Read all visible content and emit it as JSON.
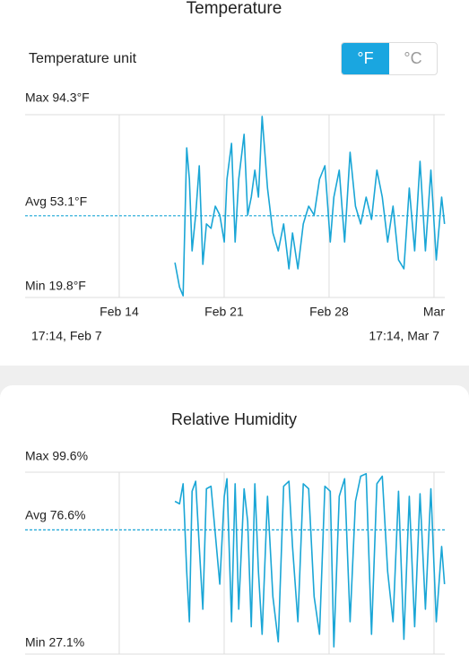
{
  "header": {
    "title": "Temperature"
  },
  "unit_setting": {
    "label": "Temperature unit",
    "options": [
      "°F",
      "°C"
    ],
    "selected": 0
  },
  "chart_data": [
    {
      "type": "line",
      "x": [
        17.72,
        18.02,
        18.26,
        18.5,
        18.68,
        18.86,
        19.1,
        19.34,
        19.58,
        19.82,
        20.12,
        20.41,
        20.71,
        21.01,
        21.19,
        21.49,
        21.73,
        21.97,
        22.33,
        22.57,
        22.81,
        23.05,
        23.29,
        23.53,
        23.89,
        24.25,
        24.61,
        24.97,
        25.32,
        25.56,
        25.92,
        26.28,
        26.64,
        27,
        27.36,
        27.72,
        28.08,
        28.32,
        28.68,
        29.04,
        29.4,
        29.76,
        30.11,
        30.47,
        30.83,
        31.19,
        31.55,
        31.91,
        32.27,
        32.63,
        32.99,
        33.35,
        33.71,
        34.07,
        34.43,
        34.79,
        35.15,
        35.51,
        35.7
      ],
      "values": [
        34,
        24,
        20.5,
        80.8,
        68,
        38.8,
        53.4,
        73.5,
        33.3,
        49.8,
        48,
        57,
        53.4,
        42.4,
        68,
        82.6,
        42.4,
        68,
        86.3,
        53.4,
        60.7,
        71.7,
        60.7,
        93.6,
        64.4,
        46.1,
        38.8,
        49.8,
        31.5,
        46.1,
        31.5,
        49.8,
        57,
        53.4,
        68,
        73.5,
        42.4,
        60.7,
        71.7,
        42.4,
        79,
        57,
        49.8,
        60.7,
        51.6,
        71.7,
        60.7,
        42.4,
        57,
        35.1,
        31.5,
        64.4,
        38.8,
        75.3,
        38.8,
        71.7,
        35.1,
        60.7,
        49.8
      ],
      "color": "#1aa6d6",
      "max": {
        "value": 94.3,
        "label": "Max 94.3°F"
      },
      "avg": {
        "value": 53.1,
        "label": "Avg 53.1°F"
      },
      "min": {
        "value": 19.8,
        "label": "Min 19.8°F"
      },
      "xlim": [
        7.72,
        35.72
      ],
      "ylim": [
        19.8,
        94.3
      ],
      "xticks": [
        {
          "value": 14,
          "label": "Feb 14"
        },
        {
          "value": 21,
          "label": "Feb 21"
        },
        {
          "value": 28,
          "label": "Feb 28"
        },
        {
          "value": 35,
          "label": "Mar"
        }
      ],
      "range_labels": [
        "17:14,  Feb 7",
        "17:14,  Mar 7"
      ]
    },
    {
      "type": "line",
      "title": "Relative Humidity",
      "x": [
        17.72,
        18.02,
        18.26,
        18.5,
        18.68,
        18.86,
        19.1,
        19.34,
        19.58,
        19.82,
        20.12,
        20.41,
        20.71,
        21.01,
        21.19,
        21.49,
        21.73,
        21.97,
        22.33,
        22.57,
        22.81,
        23.05,
        23.29,
        23.53,
        23.89,
        24.25,
        24.61,
        24.97,
        25.32,
        25.56,
        25.92,
        26.28,
        26.64,
        27,
        27.36,
        27.72,
        28.08,
        28.32,
        28.68,
        29.04,
        29.4,
        29.76,
        30.11,
        30.47,
        30.83,
        31.19,
        31.55,
        31.91,
        32.27,
        32.63,
        32.99,
        33.35,
        33.71,
        34.07,
        34.43,
        34.79,
        35.15,
        35.51,
        35.7
      ],
      "values": [
        88,
        87,
        95,
        60,
        40,
        92,
        96,
        70,
        45,
        93,
        94,
        75,
        55,
        90,
        97,
        40,
        95,
        45,
        93,
        80,
        38,
        95,
        60,
        35,
        90,
        50,
        32,
        94,
        96,
        70,
        40,
        95,
        93,
        50,
        35,
        94,
        92,
        30,
        90,
        97,
        40,
        88,
        98,
        99,
        35,
        95,
        98,
        60,
        40,
        92,
        33,
        90,
        38,
        91,
        45,
        93,
        40,
        70,
        55
      ],
      "color": "#1aa6d6",
      "max": {
        "value": 99.6,
        "label": "Max 99.6%"
      },
      "avg": {
        "value": 76.6,
        "label": "Avg 76.6%"
      },
      "min": {
        "value": 27.1,
        "label": "Min 27.1%"
      },
      "xlim": [
        7.72,
        35.72
      ],
      "ylim": [
        27.1,
        99.6
      ],
      "xgrid": [
        14,
        21,
        28,
        35
      ]
    }
  ]
}
